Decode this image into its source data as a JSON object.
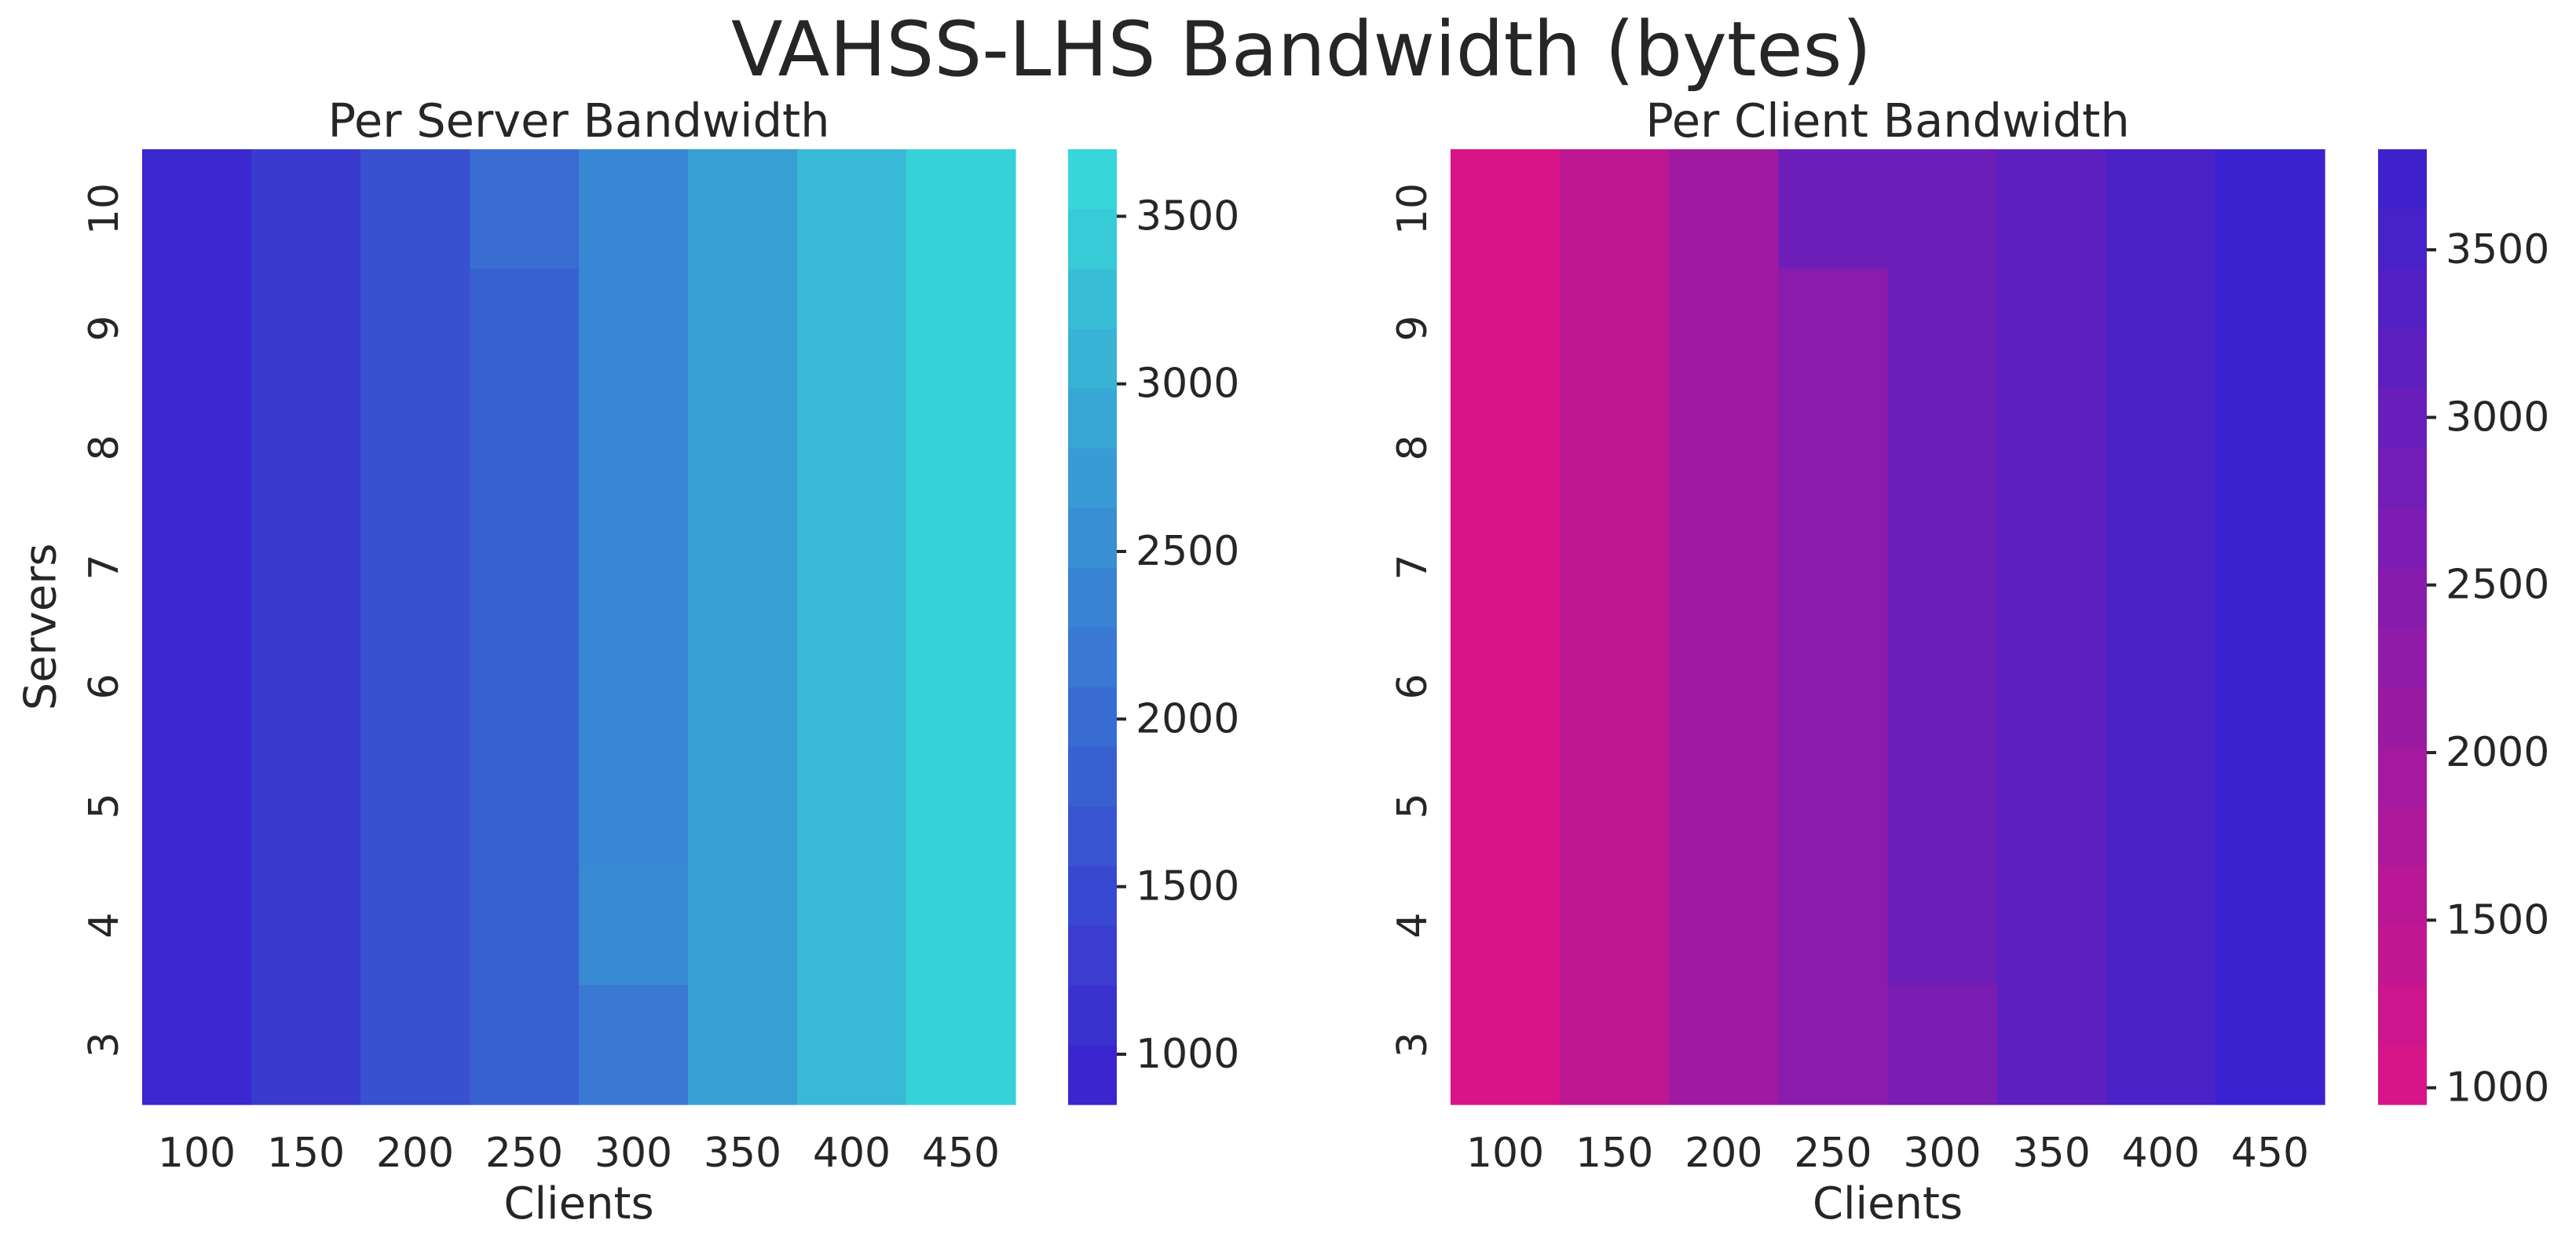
{
  "title": "VAHSS-LHS Bandwidth (bytes)",
  "chart_data": [
    {
      "type": "heatmap",
      "title": "Per Server Bandwidth",
      "xlabel": "Clients",
      "ylabel": "Servers",
      "x": [
        "100",
        "150",
        "200",
        "250",
        "300",
        "350",
        "400",
        "450"
      ],
      "y": [
        "10",
        "9",
        "8",
        "7",
        "6",
        "5",
        "4",
        "3"
      ],
      "values": [
        [
          970,
          1260,
          1590,
          2030,
          2420,
          2780,
          3180,
          3550
        ],
        [
          970,
          1260,
          1590,
          1830,
          2420,
          2780,
          3180,
          3550
        ],
        [
          970,
          1260,
          1590,
          1830,
          2420,
          2780,
          3180,
          3550
        ],
        [
          970,
          1260,
          1590,
          1830,
          2420,
          2780,
          3180,
          3550
        ],
        [
          970,
          1260,
          1590,
          1830,
          2420,
          2780,
          3180,
          3550
        ],
        [
          970,
          1260,
          1590,
          1830,
          2420,
          2780,
          3180,
          3550
        ],
        [
          970,
          1260,
          1590,
          1830,
          2450,
          2780,
          3180,
          3550
        ],
        [
          970,
          1260,
          1590,
          1830,
          2200,
          2780,
          3180,
          3550
        ]
      ],
      "colorbar": {
        "min": 850,
        "max": 3700,
        "ticks": [
          1000,
          1500,
          2000,
          2500,
          3000,
          3500
        ],
        "colors": [
          "#3a1fce",
          "#37dcd8"
        ]
      }
    },
    {
      "type": "heatmap",
      "title": "Per Client Bandwidth",
      "xlabel": "Clients",
      "ylabel": "",
      "x": [
        "100",
        "150",
        "200",
        "250",
        "300",
        "350",
        "400",
        "450"
      ],
      "y": [
        "10",
        "9",
        "8",
        "7",
        "6",
        "5",
        "4",
        "3"
      ],
      "values": [
        [
          1000,
          1500,
          2000,
          2900,
          2900,
          3200,
          3500,
          3800
        ],
        [
          1000,
          1500,
          2000,
          2400,
          2900,
          3200,
          3500,
          3800
        ],
        [
          1000,
          1500,
          2000,
          2400,
          2900,
          3200,
          3500,
          3800
        ],
        [
          1000,
          1500,
          2000,
          2400,
          2900,
          3200,
          3500,
          3800
        ],
        [
          1000,
          1500,
          2000,
          2400,
          2900,
          3200,
          3500,
          3800
        ],
        [
          1000,
          1500,
          2000,
          2400,
          2900,
          3200,
          3500,
          3800
        ],
        [
          1000,
          1500,
          2000,
          2400,
          2900,
          3200,
          3500,
          3800
        ],
        [
          1000,
          1500,
          2000,
          2400,
          2650,
          3200,
          3500,
          3800
        ]
      ],
      "colorbar": {
        "min": 950,
        "max": 3800,
        "ticks": [
          1000,
          1500,
          2000,
          2500,
          3000,
          3500
        ],
        "colors": [
          "#dc1486",
          "#3a22d0"
        ]
      }
    }
  ]
}
